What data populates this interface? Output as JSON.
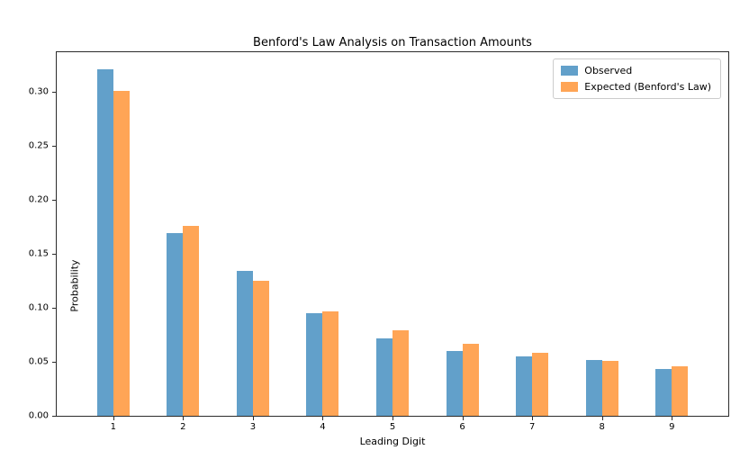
{
  "chart_data": {
    "type": "bar",
    "title": "Benford's Law Analysis on Transaction Amounts",
    "xlabel": "Leading Digit",
    "ylabel": "Probability",
    "categories": [
      "1",
      "2",
      "3",
      "4",
      "5",
      "6",
      "7",
      "8",
      "9"
    ],
    "series": [
      {
        "name": "Observed",
        "color": "#62A0CA",
        "values": [
          0.321,
          0.169,
          0.134,
          0.095,
          0.072,
          0.06,
          0.055,
          0.052,
          0.043
        ]
      },
      {
        "name": "Expected (Benford's Law)",
        "color": "#FFA556",
        "values": [
          0.301,
          0.176,
          0.125,
          0.097,
          0.079,
          0.067,
          0.058,
          0.051,
          0.046
        ]
      }
    ],
    "ylim": [
      0,
      0.337
    ],
    "yticks": [
      0.0,
      0.05,
      0.1,
      0.15,
      0.2,
      0.25,
      0.3
    ],
    "ytick_decimals": 2,
    "legend_position": "upper right",
    "grid": false
  }
}
